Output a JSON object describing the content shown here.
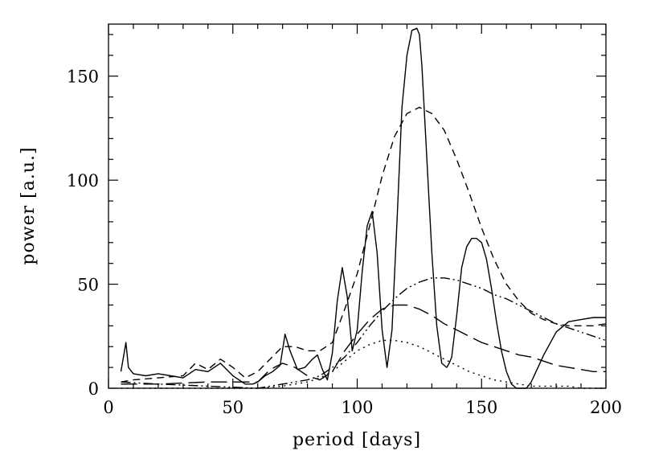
{
  "chart_data": {
    "type": "line",
    "title": "",
    "xlabel": "period [days]",
    "ylabel": "power [a.u.]",
    "xlim": [
      0,
      200
    ],
    "ylim": [
      0,
      175
    ],
    "xticks": [
      0,
      50,
      100,
      150,
      200
    ],
    "yticks": [
      0,
      50,
      100,
      150
    ],
    "x_tick_labels": [
      "0",
      "50",
      "100",
      "150",
      "200"
    ],
    "y_tick_labels": [
      "0",
      "50",
      "100",
      "150"
    ],
    "x_minor_step": 10,
    "y_minor_step": 10,
    "grid": false,
    "legend": "none",
    "series": [
      {
        "style": "solid",
        "x": [
          5,
          6,
          7,
          8,
          10,
          15,
          20,
          25,
          30,
          35,
          40,
          45,
          50,
          55,
          58,
          60,
          63,
          66,
          69,
          71,
          73,
          76,
          79,
          82,
          84,
          86,
          88,
          90,
          92,
          94,
          96,
          98,
          100,
          102,
          104,
          106,
          108,
          110,
          112,
          114,
          116,
          118,
          120,
          122,
          124,
          125,
          126,
          128,
          130,
          132,
          134,
          136,
          137,
          138,
          140,
          142,
          144,
          146,
          148,
          150,
          152,
          154,
          156,
          158,
          160,
          162,
          164,
          166,
          168,
          170,
          175,
          180,
          185,
          190,
          195,
          200
        ],
        "y": [
          8,
          15,
          22,
          10,
          7,
          6,
          7,
          6,
          5,
          9,
          8,
          12,
          6,
          2,
          2,
          3,
          6,
          8,
          11,
          26,
          18,
          9,
          10,
          14,
          16,
          9,
          4,
          17,
          42,
          58,
          44,
          18,
          28,
          56,
          78,
          85,
          65,
          28,
          10,
          28,
          80,
          135,
          160,
          172,
          173,
          170,
          155,
          110,
          65,
          30,
          12,
          10,
          12,
          15,
          35,
          58,
          68,
          72,
          72,
          70,
          62,
          48,
          32,
          18,
          8,
          2,
          0,
          0,
          0,
          3,
          16,
          27,
          32,
          33,
          34,
          34
        ]
      },
      {
        "style": "dashed",
        "x": [
          5,
          10,
          20,
          30,
          35,
          40,
          45,
          50,
          55,
          60,
          65,
          70,
          75,
          80,
          85,
          90,
          95,
          100,
          105,
          110,
          115,
          120,
          125,
          130,
          135,
          140,
          145,
          150,
          155,
          160,
          165,
          170,
          175,
          180,
          185,
          190,
          195,
          200
        ],
        "y": [
          3,
          4,
          5,
          6,
          12,
          9,
          14,
          10,
          5,
          8,
          14,
          20,
          20,
          18,
          18,
          22,
          38,
          55,
          78,
          102,
          121,
          132,
          135,
          132,
          124,
          110,
          94,
          77,
          62,
          50,
          42,
          36,
          33,
          31,
          30,
          30,
          30,
          31
        ]
      },
      {
        "style": "dash-dot-dot",
        "x": [
          5,
          20,
          40,
          60,
          70,
          80,
          85,
          90,
          95,
          100,
          105,
          110,
          115,
          120,
          125,
          130,
          135,
          140,
          145,
          150,
          155,
          160,
          165,
          170,
          175,
          180,
          185,
          190,
          195,
          200
        ],
        "y": [
          3,
          2,
          1,
          0,
          2,
          4,
          6,
          10,
          15,
          22,
          30,
          37,
          43,
          48,
          51,
          53,
          53,
          52,
          50,
          48,
          45,
          43,
          40,
          37,
          34,
          31,
          29,
          27,
          25,
          23
        ]
      },
      {
        "style": "long-dashed",
        "x": [
          5,
          20,
          40,
          60,
          65,
          70,
          75,
          80,
          85,
          90,
          95,
          100,
          105,
          110,
          115,
          120,
          125,
          130,
          135,
          140,
          145,
          150,
          155,
          160,
          165,
          170,
          175,
          180,
          185,
          190,
          195,
          200
        ],
        "y": [
          2,
          2,
          3,
          3,
          9,
          12,
          10,
          6,
          4,
          8,
          18,
          26,
          33,
          38,
          40,
          40,
          38,
          35,
          31,
          28,
          25,
          22,
          20,
          18,
          16,
          15,
          13,
          11,
          10,
          9,
          8,
          8
        ]
      },
      {
        "style": "dotted",
        "x": [
          5,
          40,
          60,
          70,
          80,
          85,
          90,
          95,
          100,
          105,
          110,
          115,
          120,
          125,
          130,
          135,
          140,
          145,
          150,
          155,
          160,
          165,
          170,
          175,
          180,
          185,
          190,
          195,
          200
        ],
        "y": [
          0,
          0,
          0,
          1,
          3,
          5,
          8,
          13,
          18,
          21,
          23,
          23,
          22,
          20,
          17,
          14,
          11,
          8,
          6,
          4,
          3,
          2,
          1,
          1,
          1,
          1,
          0,
          0,
          0
        ]
      }
    ]
  }
}
